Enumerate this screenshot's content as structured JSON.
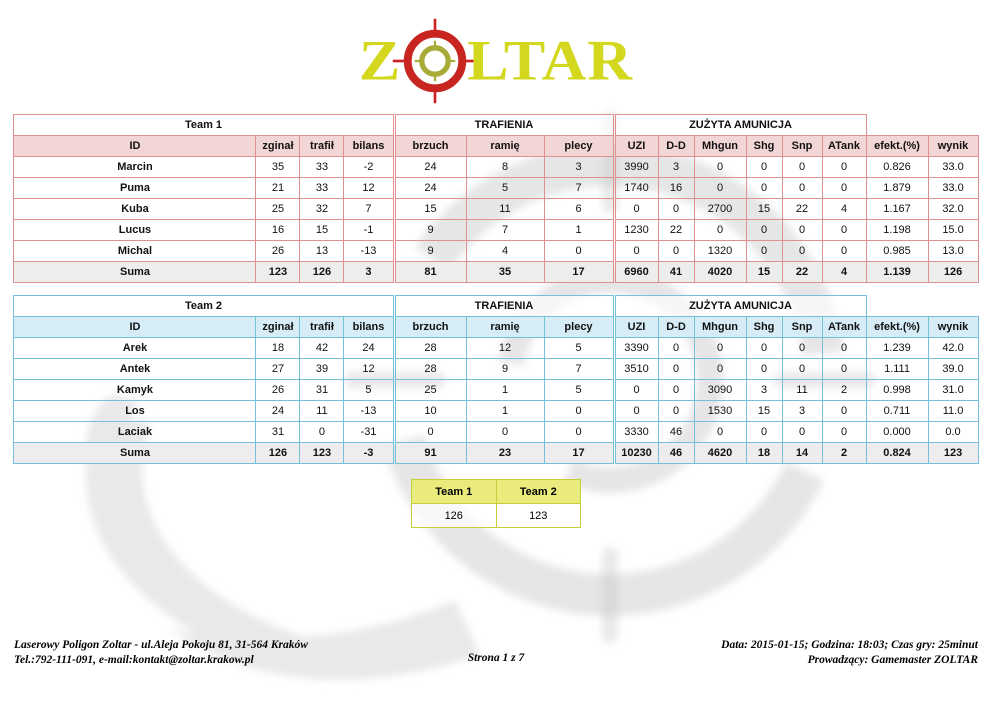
{
  "logo": {
    "prefix": "Z",
    "suffix": "LTAR",
    "text_color": "#d3d81e",
    "crosshair_red": "#c82420",
    "crosshair_inner": "#a8ab37"
  },
  "labels": {
    "trafienia": "TRAFIENIA",
    "amunicja": "ZUŻYTA AMUNICJA"
  },
  "columns": [
    "ID",
    "zginał",
    "trafił",
    "bilans",
    "brzuch",
    "ramię",
    "plecy",
    "UZI",
    "D-D",
    "Mhgun",
    "Shg",
    "Snp",
    "ATank",
    "efekt.(%)",
    "wynik"
  ],
  "team1": {
    "label": "Team 1",
    "accent_border": "#e09090",
    "accent_header_bg": "#f2d5d5",
    "rows": [
      [
        "Marcin",
        "35",
        "33",
        "-2",
        "24",
        "8",
        "3",
        "3990",
        "3",
        "0",
        "0",
        "0",
        "0",
        "0.826",
        "33.0"
      ],
      [
        "Puma",
        "21",
        "33",
        "12",
        "24",
        "5",
        "7",
        "1740",
        "16",
        "0",
        "0",
        "0",
        "0",
        "1.879",
        "33.0"
      ],
      [
        "Kuba",
        "25",
        "32",
        "7",
        "15",
        "11",
        "6",
        "0",
        "0",
        "2700",
        "15",
        "22",
        "4",
        "1.167",
        "32.0"
      ],
      [
        "Lucus",
        "16",
        "15",
        "-1",
        "9",
        "7",
        "1",
        "1230",
        "22",
        "0",
        "0",
        "0",
        "0",
        "1.198",
        "15.0"
      ],
      [
        "Michal",
        "26",
        "13",
        "-13",
        "9",
        "4",
        "0",
        "0",
        "0",
        "1320",
        "0",
        "0",
        "0",
        "0.985",
        "13.0"
      ]
    ],
    "suma": [
      "Suma",
      "123",
      "126",
      "3",
      "81",
      "35",
      "17",
      "6960",
      "41",
      "4020",
      "15",
      "22",
      "4",
      "1.139",
      "126"
    ]
  },
  "team2": {
    "label": "Team 2",
    "accent_border": "#74bfd9",
    "accent_header_bg": "#d6ecf6",
    "rows": [
      [
        "Arek",
        "18",
        "42",
        "24",
        "28",
        "12",
        "5",
        "3390",
        "0",
        "0",
        "0",
        "0",
        "0",
        "1.239",
        "42.0"
      ],
      [
        "Antek",
        "27",
        "39",
        "12",
        "28",
        "9",
        "7",
        "3510",
        "0",
        "0",
        "0",
        "0",
        "0",
        "1.111",
        "39.0"
      ],
      [
        "Kamyk",
        "26",
        "31",
        "5",
        "25",
        "1",
        "5",
        "0",
        "0",
        "3090",
        "3",
        "11",
        "2",
        "0.998",
        "31.0"
      ],
      [
        "Los",
        "24",
        "11",
        "-13",
        "10",
        "1",
        "0",
        "0",
        "0",
        "1530",
        "15",
        "3",
        "0",
        "0.711",
        "11.0"
      ],
      [
        "Laciak",
        "31",
        "0",
        "-31",
        "0",
        "0",
        "0",
        "3330",
        "46",
        "0",
        "0",
        "0",
        "0",
        "0.000",
        "0.0"
      ]
    ],
    "suma": [
      "Suma",
      "126",
      "123",
      "-3",
      "91",
      "23",
      "17",
      "10230",
      "46",
      "4620",
      "18",
      "14",
      "2",
      "0.824",
      "123"
    ]
  },
  "summary": {
    "headers": [
      "Team 1",
      "Team 2"
    ],
    "values": [
      "126",
      "123"
    ],
    "accent_border": "#c8ce39",
    "accent_header_bg": "#e9eb7d"
  },
  "footer": {
    "left_line1": "Laserowy Poligon Zoltar - ul.Aleja Pokoju 81, 31-564 Kraków",
    "left_line2": "Tel.:792-111-091, e-mail:kontakt@zoltar.krakow.pl",
    "center": "Strona 1 z 7",
    "right_line1": "Data: 2015-01-15; Godzina: 18:03; Czas gry: 25minut",
    "right_line2": "Prowadzący: Gamemaster ZOLTAR"
  }
}
